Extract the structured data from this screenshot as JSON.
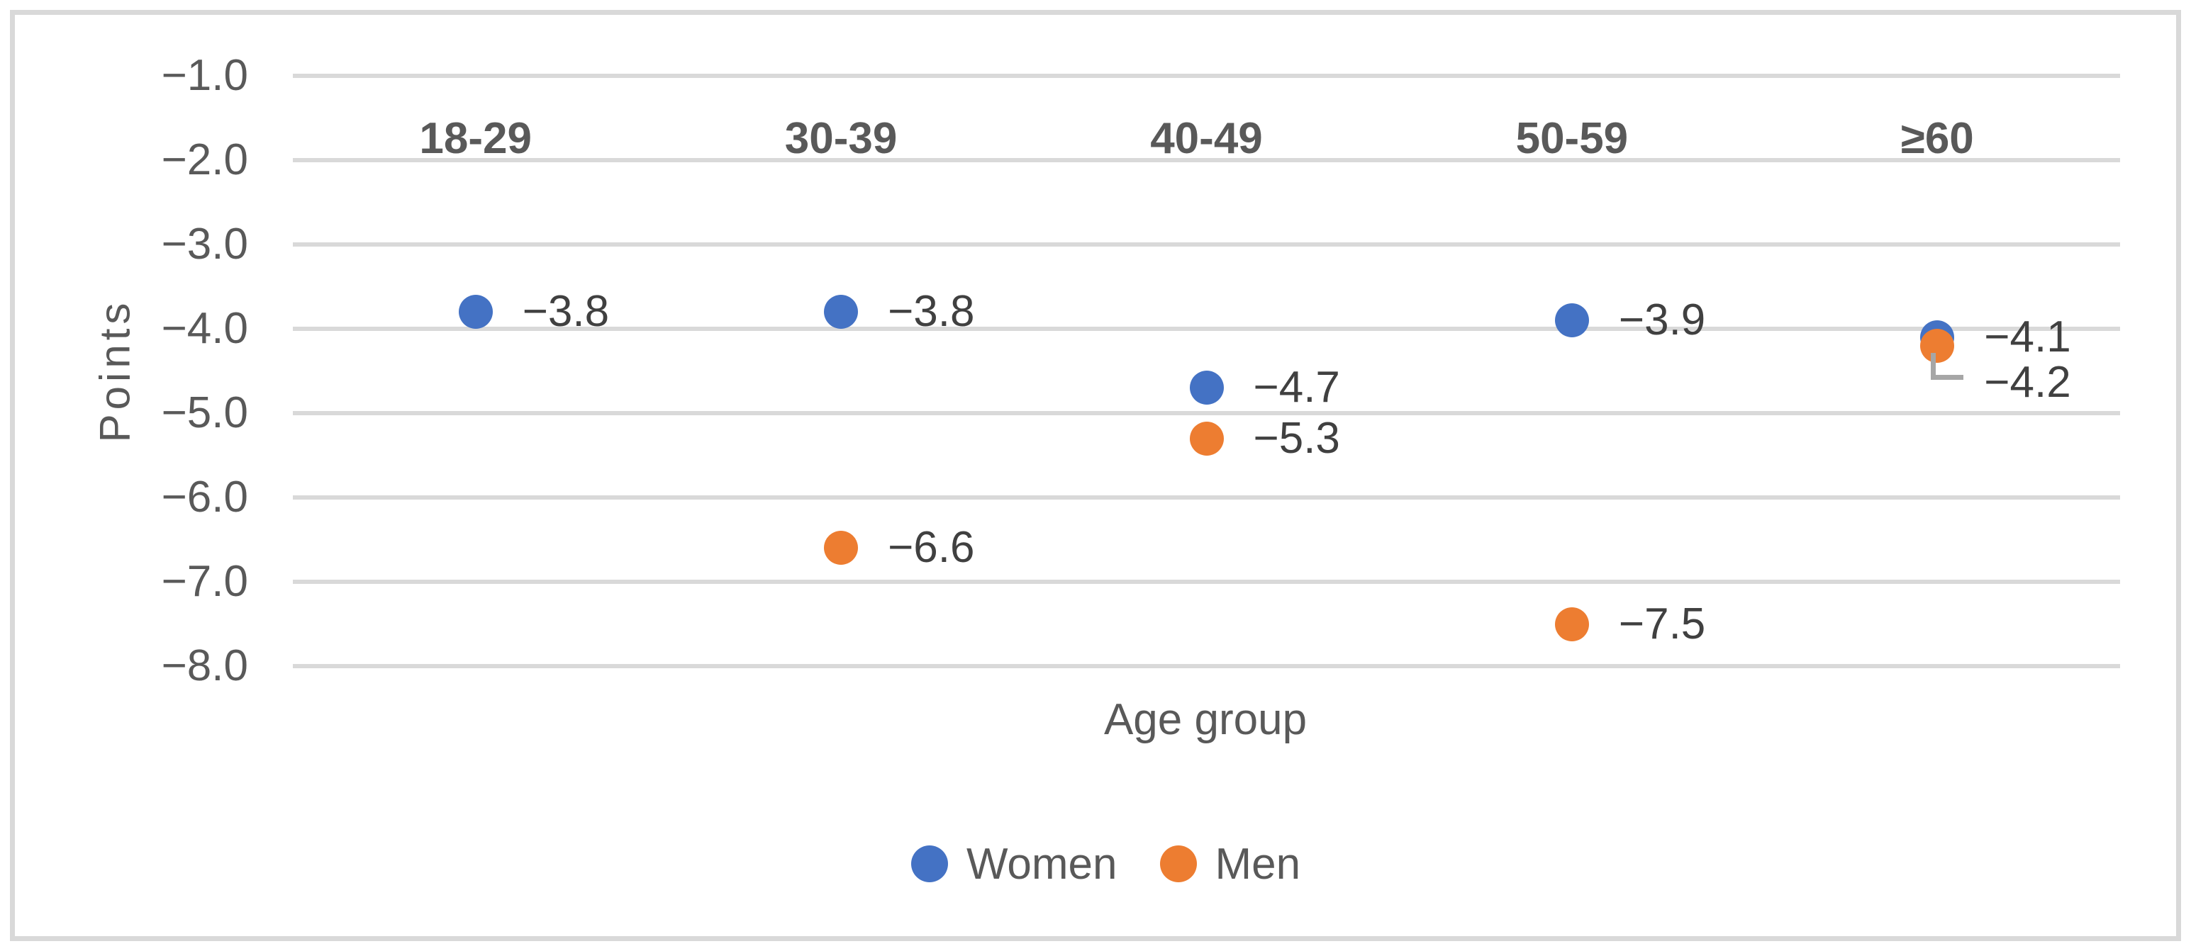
{
  "figure": {
    "background": "#FFFFFF",
    "frame_color": "#D9D9D9",
    "gridline_color": "#D9D9D9",
    "axis_text_color": "#595959",
    "data_label_color": "#404040",
    "leader_line_color": "#A6A6A6"
  },
  "chart_data": {
    "type": "scatter",
    "title": "",
    "xlabel": "Age group",
    "ylabel": "Points",
    "categories": [
      "18-29",
      "30-39",
      "40-49",
      "50-59",
      "≥60"
    ],
    "y_axis": {
      "min": -8.0,
      "max": -1.0,
      "tick_step": 1.0,
      "ticks": [
        -1.0,
        -2.0,
        -3.0,
        -4.0,
        -5.0,
        -6.0,
        -7.0,
        -8.0
      ],
      "tick_labels": [
        "−1.0",
        "−2.0",
        "−3.0",
        "−4.0",
        "−5.0",
        "−6.0",
        "−7.0",
        "−8.0"
      ]
    },
    "grid": true,
    "legend_position": "bottom",
    "series": [
      {
        "name": "Women",
        "color": "#4472C4",
        "points": [
          {
            "category": "18-29",
            "value": -3.8,
            "label": "−3.8"
          },
          {
            "category": "30-39",
            "value": -3.8,
            "label": "−3.8"
          },
          {
            "category": "40-49",
            "value": -4.7,
            "label": "−4.7"
          },
          {
            "category": "50-59",
            "value": -3.9,
            "label": "−3.9"
          },
          {
            "category": "≥60",
            "value": -4.1,
            "label": "−4.1"
          }
        ]
      },
      {
        "name": "Men",
        "color": "#ED7D31",
        "points": [
          {
            "category": "30-39",
            "value": -6.6,
            "label": "−6.6"
          },
          {
            "category": "40-49",
            "value": -5.3,
            "label": "−5.3"
          },
          {
            "category": "50-59",
            "value": -7.5,
            "label": "−7.5"
          },
          {
            "category": "≥60",
            "value": -4.2,
            "label": "−4.2",
            "label_dy": 52,
            "leader_line": true
          }
        ]
      }
    ]
  }
}
